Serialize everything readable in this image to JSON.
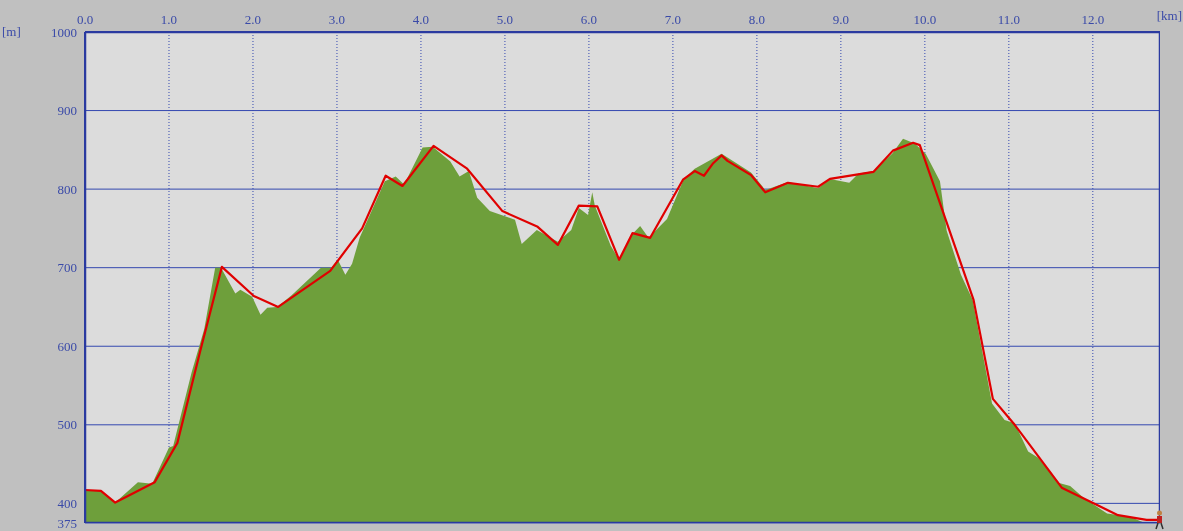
{
  "chart_data": {
    "type": "area",
    "xlabel": "[km]",
    "ylabel": "[m]",
    "xlim": [
      0,
      12.8
    ],
    "ylim": [
      375,
      1000
    ],
    "xticks": [
      {
        "value": 0,
        "label": "0.0"
      },
      {
        "value": 1,
        "label": "1.0"
      },
      {
        "value": 2,
        "label": "2.0"
      },
      {
        "value": 3,
        "label": "3.0"
      },
      {
        "value": 4,
        "label": "4.0"
      },
      {
        "value": 5,
        "label": "5.0"
      },
      {
        "value": 6,
        "label": "6.0"
      },
      {
        "value": 7,
        "label": "7.0"
      },
      {
        "value": 8,
        "label": "8.0"
      },
      {
        "value": 9,
        "label": "9.0"
      },
      {
        "value": 10,
        "label": "10.0"
      },
      {
        "value": 11,
        "label": "11.0"
      },
      {
        "value": 12,
        "label": "12.0"
      }
    ],
    "yticks": [
      375,
      400,
      500,
      600,
      700,
      800,
      900,
      1000
    ],
    "grid": true,
    "marker": "none",
    "series": [
      {
        "color": "#6e9f3b",
        "x": [
          0,
          0.19,
          0.36,
          0.63,
          0.8,
          1.0,
          1.05,
          1.27,
          1.42,
          1.55,
          1.62,
          1.79,
          1.85,
          1.99,
          2.09,
          2.17,
          2.29,
          2.46,
          2.81,
          2.93,
          3.01,
          3.1,
          3.18,
          3.27,
          3.57,
          3.7,
          3.8,
          4.02,
          4.14,
          4.35,
          4.46,
          4.57,
          4.67,
          4.82,
          5.12,
          5.2,
          5.38,
          5.63,
          5.79,
          5.88,
          5.99,
          6.04,
          6.07,
          6.26,
          6.36,
          6.51,
          6.61,
          6.71,
          6.93,
          7.13,
          7.26,
          7.58,
          7.93,
          8.1,
          8.37,
          8.73,
          8.87,
          9.1,
          9.21,
          9.39,
          9.61,
          9.74,
          9.88,
          10.01,
          10.18,
          10.26,
          10.43,
          10.57,
          10.8,
          10.95,
          11.07,
          11.23,
          11.35,
          11.6,
          11.73,
          11.89,
          12.17,
          12.44,
          12.6,
          12.79
        ],
        "values": [
          417,
          416,
          401,
          427,
          425,
          471,
          473,
          567,
          622,
          700,
          700,
          667,
          672,
          663,
          640,
          649,
          650,
          665,
          700,
          700,
          710,
          691,
          705,
          738,
          810,
          816,
          806,
          853,
          854,
          835,
          816,
          823,
          789,
          772,
          761,
          730,
          748,
          733,
          748,
          776,
          767,
          796,
          779,
          728,
          710,
          742,
          753,
          738,
          762,
          813,
          826,
          845,
          821,
          799,
          809,
          801,
          813,
          808,
          820,
          823,
          845,
          864,
          858,
          845,
          810,
          747,
          691,
          659,
          527,
          506,
          502,
          466,
          458,
          426,
          422,
          407,
          387,
          383,
          376,
          376
        ]
      },
      {
        "type": "line",
        "color": "#e00000",
        "x": [
          0,
          0.19,
          0.36,
          0.83,
          1.1,
          1.37,
          1.63,
          2.01,
          2.3,
          2.92,
          3.3,
          3.58,
          3.78,
          4.15,
          4.55,
          4.97,
          5.39,
          5.63,
          5.88,
          6.1,
          6.36,
          6.52,
          6.73,
          7.12,
          7.26,
          7.37,
          7.48,
          7.58,
          7.65,
          7.93,
          8.1,
          8.37,
          8.73,
          8.87,
          9.39,
          9.62,
          9.86,
          9.94,
          10.58,
          10.81,
          11.07,
          11.63,
          11.99,
          12.3,
          12.64,
          12.79
        ],
        "values": [
          417,
          416,
          401,
          427,
          477,
          593,
          701,
          664,
          650,
          696,
          750,
          817,
          804,
          855,
          826,
          772,
          752,
          729,
          779,
          778,
          710,
          744,
          738,
          812,
          823,
          817,
          833,
          843,
          836,
          818,
          796,
          808,
          803,
          813,
          822,
          849,
          859,
          856,
          659,
          533,
          500,
          420,
          401,
          385,
          379,
          379
        ]
      }
    ]
  }
}
